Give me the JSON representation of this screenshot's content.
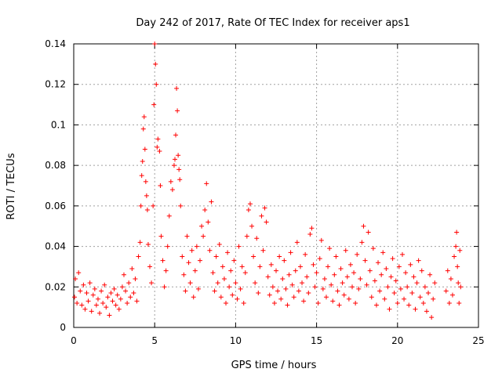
{
  "chart_data": {
    "type": "scatter",
    "title": "Day 242 of 2017, Rate Of TEC Index for receiver aps1",
    "xlabel": "GPS time / hours",
    "ylabel": "ROTI / TECUs",
    "xlim": [
      0,
      25
    ],
    "ylim": [
      0,
      0.14
    ],
    "xticks": [
      0,
      5,
      10,
      15,
      20,
      25
    ],
    "xtick_labels": [
      "0",
      "5",
      "10",
      "15",
      "20",
      "25"
    ],
    "yticks": [
      0,
      0.02,
      0.04,
      0.06,
      0.08,
      0.1,
      0.12,
      0.14
    ],
    "ytick_labels": [
      "0",
      "0.02",
      "0.04",
      "0.06",
      "0.08",
      "0.1",
      "0.12",
      "0.14"
    ],
    "grid": true,
    "marker": "+",
    "color": "#ff0000",
    "series": [
      {
        "points": [
          [
            0.05,
            0.015
          ],
          [
            0.1,
            0.024
          ],
          [
            0.2,
            0.012
          ],
          [
            0.3,
            0.027
          ],
          [
            0.4,
            0.018
          ],
          [
            0.5,
            0.011
          ],
          [
            0.6,
            0.021
          ],
          [
            0.7,
            0.009
          ],
          [
            0.8,
            0.017
          ],
          [
            0.9,
            0.013
          ],
          [
            1.0,
            0.022
          ],
          [
            1.1,
            0.008
          ],
          [
            1.2,
            0.016
          ],
          [
            1.3,
            0.019
          ],
          [
            1.4,
            0.011
          ],
          [
            1.5,
            0.014
          ],
          [
            1.6,
            0.007
          ],
          [
            1.7,
            0.018
          ],
          [
            1.8,
            0.012
          ],
          [
            1.9,
            0.021
          ],
          [
            2.0,
            0.01
          ],
          [
            2.1,
            0.015
          ],
          [
            2.2,
            0.006
          ],
          [
            2.3,
            0.017
          ],
          [
            2.4,
            0.013
          ],
          [
            2.5,
            0.019
          ],
          [
            2.6,
            0.011
          ],
          [
            2.7,
            0.016
          ],
          [
            2.8,
            0.009
          ],
          [
            2.9,
            0.014
          ],
          [
            3.0,
            0.02
          ],
          [
            3.1,
            0.026
          ],
          [
            3.2,
            0.018
          ],
          [
            3.3,
            0.012
          ],
          [
            3.4,
            0.022
          ],
          [
            3.5,
            0.015
          ],
          [
            3.6,
            0.029
          ],
          [
            3.7,
            0.017
          ],
          [
            3.8,
            0.024
          ],
          [
            3.9,
            0.013
          ],
          [
            4.0,
            0.035
          ],
          [
            4.1,
            0.042
          ],
          [
            4.15,
            0.06
          ],
          [
            4.2,
            0.075
          ],
          [
            4.25,
            0.082
          ],
          [
            4.3,
            0.098
          ],
          [
            4.35,
            0.104
          ],
          [
            4.4,
            0.088
          ],
          [
            4.45,
            0.072
          ],
          [
            4.5,
            0.065
          ],
          [
            4.55,
            0.058
          ],
          [
            4.6,
            0.041
          ],
          [
            4.7,
            0.03
          ],
          [
            4.8,
            0.022
          ],
          [
            4.9,
            0.06
          ],
          [
            4.95,
            0.11
          ],
          [
            5.0,
            0.14
          ],
          [
            5.05,
            0.13
          ],
          [
            5.1,
            0.12
          ],
          [
            5.15,
            0.089
          ],
          [
            5.2,
            0.093
          ],
          [
            5.3,
            0.087
          ],
          [
            5.35,
            0.07
          ],
          [
            5.4,
            0.045
          ],
          [
            5.5,
            0.033
          ],
          [
            5.6,
            0.02
          ],
          [
            5.7,
            0.028
          ],
          [
            5.8,
            0.04
          ],
          [
            5.9,
            0.055
          ],
          [
            6.0,
            0.072
          ],
          [
            6.1,
            0.068
          ],
          [
            6.2,
            0.08
          ],
          [
            6.25,
            0.083
          ],
          [
            6.3,
            0.095
          ],
          [
            6.35,
            0.118
          ],
          [
            6.4,
            0.107
          ],
          [
            6.45,
            0.085
          ],
          [
            6.5,
            0.078
          ],
          [
            6.55,
            0.073
          ],
          [
            6.6,
            0.06
          ],
          [
            6.7,
            0.035
          ],
          [
            6.8,
            0.026
          ],
          [
            6.9,
            0.018
          ],
          [
            7.0,
            0.045
          ],
          [
            7.1,
            0.032
          ],
          [
            7.2,
            0.022
          ],
          [
            7.3,
            0.038
          ],
          [
            7.4,
            0.015
          ],
          [
            7.5,
            0.028
          ],
          [
            7.6,
            0.04
          ],
          [
            7.7,
            0.019
          ],
          [
            7.8,
            0.033
          ],
          [
            7.9,
            0.05
          ],
          [
            8.0,
            0.045
          ],
          [
            8.1,
            0.058
          ],
          [
            8.2,
            0.071
          ],
          [
            8.3,
            0.052
          ],
          [
            8.4,
            0.038
          ],
          [
            8.5,
            0.062
          ],
          [
            8.6,
            0.027
          ],
          [
            8.7,
            0.018
          ],
          [
            8.8,
            0.035
          ],
          [
            8.9,
            0.022
          ],
          [
            9.0,
            0.041
          ],
          [
            9.1,
            0.015
          ],
          [
            9.2,
            0.03
          ],
          [
            9.3,
            0.024
          ],
          [
            9.4,
            0.012
          ],
          [
            9.5,
            0.037
          ],
          [
            9.6,
            0.02
          ],
          [
            9.7,
            0.028
          ],
          [
            9.8,
            0.016
          ],
          [
            9.9,
            0.033
          ],
          [
            10.0,
            0.022
          ],
          [
            10.1,
            0.014
          ],
          [
            10.2,
            0.04
          ],
          [
            10.3,
            0.019
          ],
          [
            10.4,
            0.03
          ],
          [
            10.5,
            0.012
          ],
          [
            10.6,
            0.027
          ],
          [
            10.7,
            0.045
          ],
          [
            10.8,
            0.058
          ],
          [
            10.9,
            0.061
          ],
          [
            11.0,
            0.05
          ],
          [
            11.1,
            0.035
          ],
          [
            11.2,
            0.022
          ],
          [
            11.3,
            0.044
          ],
          [
            11.4,
            0.017
          ],
          [
            11.5,
            0.03
          ],
          [
            11.6,
            0.055
          ],
          [
            11.7,
            0.038
          ],
          [
            11.8,
            0.059
          ],
          [
            11.9,
            0.052
          ],
          [
            12.0,
            0.025
          ],
          [
            12.1,
            0.016
          ],
          [
            12.2,
            0.031
          ],
          [
            12.3,
            0.02
          ],
          [
            12.4,
            0.012
          ],
          [
            12.5,
            0.028
          ],
          [
            12.6,
            0.018
          ],
          [
            12.7,
            0.035
          ],
          [
            12.8,
            0.014
          ],
          [
            12.9,
            0.024
          ],
          [
            13.0,
            0.033
          ],
          [
            13.1,
            0.019
          ],
          [
            13.2,
            0.011
          ],
          [
            13.3,
            0.026
          ],
          [
            13.4,
            0.037
          ],
          [
            13.5,
            0.021
          ],
          [
            13.6,
            0.015
          ],
          [
            13.7,
            0.028
          ],
          [
            13.8,
            0.042
          ],
          [
            13.9,
            0.018
          ],
          [
            14.0,
            0.03
          ],
          [
            14.1,
            0.022
          ],
          [
            14.2,
            0.013
          ],
          [
            14.3,
            0.036
          ],
          [
            14.4,
            0.025
          ],
          [
            14.5,
            0.017
          ],
          [
            14.6,
            0.046
          ],
          [
            14.7,
            0.049
          ],
          [
            14.8,
            0.031
          ],
          [
            14.9,
            0.02
          ],
          [
            15.0,
            0.027
          ],
          [
            15.1,
            0.012
          ],
          [
            15.2,
            0.034
          ],
          [
            15.3,
            0.043
          ],
          [
            15.4,
            0.019
          ],
          [
            15.5,
            0.024
          ],
          [
            15.6,
            0.015
          ],
          [
            15.7,
            0.03
          ],
          [
            15.8,
            0.039
          ],
          [
            15.9,
            0.021
          ],
          [
            16.0,
            0.013
          ],
          [
            16.1,
            0.026
          ],
          [
            16.2,
            0.035
          ],
          [
            16.3,
            0.018
          ],
          [
            16.4,
            0.011
          ],
          [
            16.5,
            0.029
          ],
          [
            16.6,
            0.022
          ],
          [
            16.7,
            0.016
          ],
          [
            16.8,
            0.038
          ],
          [
            16.9,
            0.025
          ],
          [
            17.0,
            0.014
          ],
          [
            17.1,
            0.031
          ],
          [
            17.2,
            0.02
          ],
          [
            17.3,
            0.027
          ],
          [
            17.4,
            0.012
          ],
          [
            17.5,
            0.036
          ],
          [
            17.6,
            0.019
          ],
          [
            17.7,
            0.024
          ],
          [
            17.8,
            0.042
          ],
          [
            17.9,
            0.05
          ],
          [
            18.0,
            0.033
          ],
          [
            18.1,
            0.021
          ],
          [
            18.2,
            0.047
          ],
          [
            18.3,
            0.028
          ],
          [
            18.4,
            0.015
          ],
          [
            18.5,
            0.039
          ],
          [
            18.6,
            0.023
          ],
          [
            18.7,
            0.011
          ],
          [
            18.8,
            0.032
          ],
          [
            18.9,
            0.018
          ],
          [
            19.0,
            0.026
          ],
          [
            19.1,
            0.037
          ],
          [
            19.2,
            0.014
          ],
          [
            19.3,
            0.029
          ],
          [
            19.4,
            0.02
          ],
          [
            19.5,
            0.009
          ],
          [
            19.6,
            0.025
          ],
          [
            19.7,
            0.034
          ],
          [
            19.8,
            0.017
          ],
          [
            19.9,
            0.023
          ],
          [
            20.0,
            0.012
          ],
          [
            20.1,
            0.03
          ],
          [
            20.2,
            0.019
          ],
          [
            20.3,
            0.036
          ],
          [
            20.4,
            0.014
          ],
          [
            20.5,
            0.027
          ],
          [
            20.6,
            0.02
          ],
          [
            20.7,
            0.011
          ],
          [
            20.8,
            0.031
          ],
          [
            20.9,
            0.017
          ],
          [
            21.0,
            0.025
          ],
          [
            21.1,
            0.009
          ],
          [
            21.2,
            0.022
          ],
          [
            21.3,
            0.033
          ],
          [
            21.4,
            0.015
          ],
          [
            21.5,
            0.028
          ],
          [
            21.6,
            0.012
          ],
          [
            21.7,
            0.02
          ],
          [
            21.8,
            0.008
          ],
          [
            21.9,
            0.017
          ],
          [
            22.0,
            0.026
          ],
          [
            22.1,
            0.005
          ],
          [
            22.2,
            0.014
          ],
          [
            22.3,
            0.022
          ],
          [
            23.0,
            0.018
          ],
          [
            23.1,
            0.028
          ],
          [
            23.2,
            0.012
          ],
          [
            23.3,
            0.024
          ],
          [
            23.4,
            0.016
          ],
          [
            23.5,
            0.035
          ],
          [
            23.6,
            0.04
          ],
          [
            23.65,
            0.047
          ],
          [
            23.7,
            0.03
          ],
          [
            23.75,
            0.022
          ],
          [
            23.8,
            0.012
          ],
          [
            23.85,
            0.038
          ],
          [
            23.9,
            0.02
          ]
        ]
      }
    ]
  }
}
